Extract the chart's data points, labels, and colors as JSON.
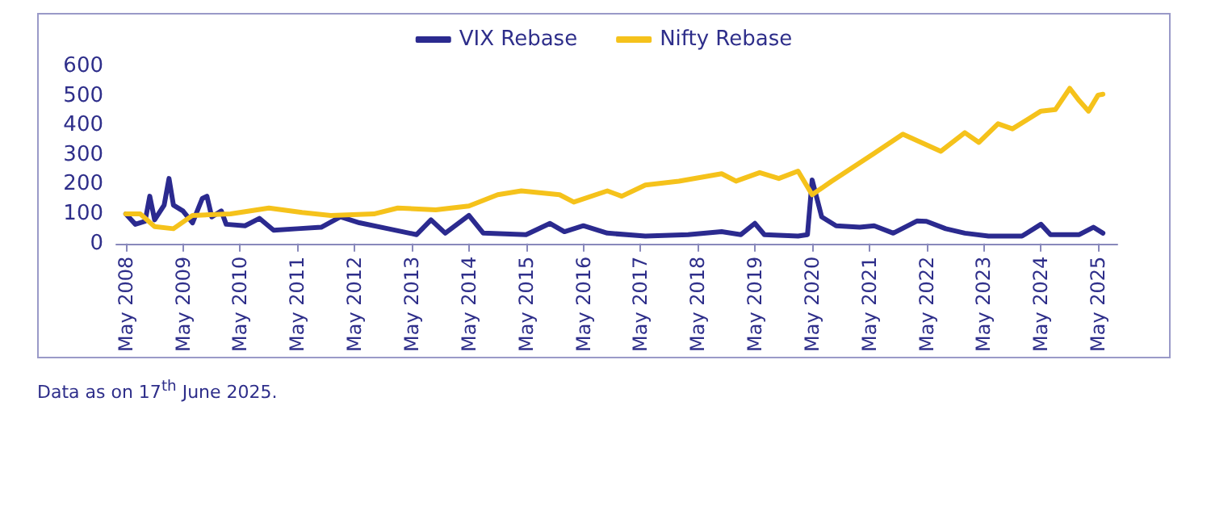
{
  "chart_data": {
    "type": "line",
    "x": [
      "2008-05",
      "2008-07",
      "2008-09",
      "2008-10",
      "2008-11",
      "2009-01",
      "2009-02",
      "2009-03",
      "2009-05",
      "2009-07",
      "2009-09",
      "2009-10",
      "2009-11",
      "2010-01",
      "2010-02",
      "2010-06",
      "2010-09",
      "2010-12",
      "2011-05",
      "2011-10",
      "2012-02",
      "2012-06",
      "2012-12",
      "2013-06",
      "2013-09",
      "2013-12",
      "2014-05",
      "2014-08",
      "2015-05",
      "2015-10",
      "2016-01",
      "2016-05",
      "2016-10",
      "2017-06",
      "2018-03",
      "2018-10",
      "2019-02",
      "2019-05",
      "2019-07",
      "2020-02",
      "2020-04",
      "2020-05",
      "2020-07",
      "2020-10",
      "2021-03",
      "2021-06",
      "2021-10",
      "2022-03",
      "2022-05",
      "2022-09",
      "2023-01",
      "2023-06",
      "2024-01",
      "2024-05",
      "2024-07",
      "2025-01",
      "2025-04",
      "2025-06"
    ],
    "series": [
      {
        "name": "VIX Rebase",
        "color": "#2b2a8f",
        "values": [
          100,
          65,
          75,
          160,
          80,
          130,
          220,
          130,
          110,
          70,
          152,
          160,
          90,
          110,
          65,
          60,
          85,
          45,
          50,
          55,
          90,
          70,
          50,
          30,
          80,
          35,
          95,
          35,
          30,
          68,
          40,
          60,
          35,
          25,
          30,
          40,
          30,
          68,
          30,
          25,
          30,
          215,
          90,
          60,
          55,
          60,
          35,
          76,
          75,
          50,
          35,
          25,
          25,
          65,
          30,
          30,
          55,
          35
        ]
      },
      {
        "name": "Nifty Rebase",
        "color": "#f5c21b",
        "x": [
          "2008-05",
          "2008-08",
          "2008-11",
          "2009-03",
          "2009-07",
          "2010-03",
          "2010-11",
          "2011-06",
          "2011-12",
          "2012-09",
          "2013-02",
          "2013-10",
          "2014-05",
          "2014-11",
          "2015-04",
          "2015-12",
          "2016-03",
          "2016-10",
          "2017-01",
          "2017-06",
          "2018-01",
          "2018-10",
          "2019-01",
          "2019-06",
          "2019-10",
          "2020-02",
          "2020-05",
          "2020-09",
          "2021-06",
          "2021-12",
          "2022-08",
          "2023-01",
          "2023-04",
          "2023-08",
          "2023-11",
          "2024-05",
          "2024-08",
          "2024-11",
          "2025-01",
          "2025-03",
          "2025-05",
          "2025-06"
        ],
        "values": [
          100,
          100,
          57,
          50,
          95,
          100,
          120,
          105,
          95,
          100,
          120,
          114,
          127,
          165,
          178,
          165,
          140,
          178,
          160,
          198,
          211,
          236,
          211,
          240,
          220,
          245,
          165,
          210,
          305,
          370,
          312,
          375,
          342,
          405,
          388,
          448,
          453,
          525,
          483,
          448,
          502,
          505
        ]
      }
    ],
    "xlim": [
      "2008-03",
      "2025-09"
    ],
    "xticks": [
      {
        "value": "2008-05",
        "label": "May 2008"
      },
      {
        "value": "2009-05",
        "label": "May 2009"
      },
      {
        "value": "2010-05",
        "label": "May 2010"
      },
      {
        "value": "2011-05",
        "label": "May 2011"
      },
      {
        "value": "2012-05",
        "label": "May 2012"
      },
      {
        "value": "2013-05",
        "label": "May 2013"
      },
      {
        "value": "2014-05",
        "label": "May 2014"
      },
      {
        "value": "2015-05",
        "label": "May 2015"
      },
      {
        "value": "2016-05",
        "label": "May 2016"
      },
      {
        "value": "2017-05",
        "label": "May 2017"
      },
      {
        "value": "2018-05",
        "label": "May 2018"
      },
      {
        "value": "2019-05",
        "label": "May 2019"
      },
      {
        "value": "2020-05",
        "label": "May 2020"
      },
      {
        "value": "2021-05",
        "label": "May 2021"
      },
      {
        "value": "2022-05",
        "label": "May 2022"
      },
      {
        "value": "2023-05",
        "label": "May 2023"
      },
      {
        "value": "2024-05",
        "label": "May 2024"
      },
      {
        "value": "2025-05",
        "label": "May 2025"
      }
    ],
    "ylim": [
      0,
      600
    ],
    "yticks": [
      0,
      100,
      200,
      300,
      400,
      500,
      600
    ],
    "grid": false,
    "legend": "top",
    "marker": "none",
    "line_style": "solid",
    "annotations": [
      "Data as on 17$^{th}$ June 2025."
    ]
  }
}
